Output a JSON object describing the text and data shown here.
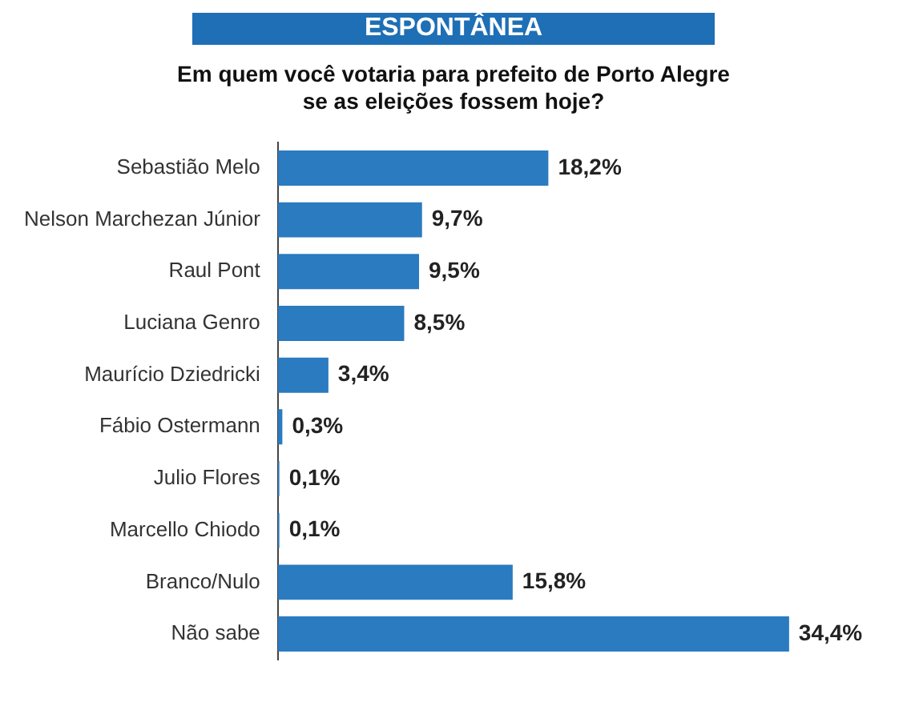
{
  "chart_data": {
    "type": "bar",
    "orientation": "horizontal",
    "title": "ESPONTÂNEA",
    "subtitle": "Em quem você votaria para prefeito de Porto Alegre se as eleições fossem hoje?",
    "categories": [
      "Sebastião Melo",
      "Nelson Marchezan Júnior",
      "Raul Pont",
      "Luciana Genro",
      "Maurício Dziedricki",
      "Fábio Ostermann",
      "Julio Flores",
      "Marcello Chiodo",
      "Branco/Nulo",
      "Não sabe"
    ],
    "values": [
      18.2,
      9.7,
      9.5,
      8.5,
      3.4,
      0.3,
      0.1,
      0.1,
      15.8,
      34.4
    ],
    "value_labels": [
      "18,2%",
      "9,7%",
      "9,5%",
      "8,5%",
      "3,4%",
      "0,3%",
      "0,1%",
      "0,1%",
      "15,8%",
      "34,4%"
    ],
    "color": "#2a7bc0",
    "legend": false
  }
}
